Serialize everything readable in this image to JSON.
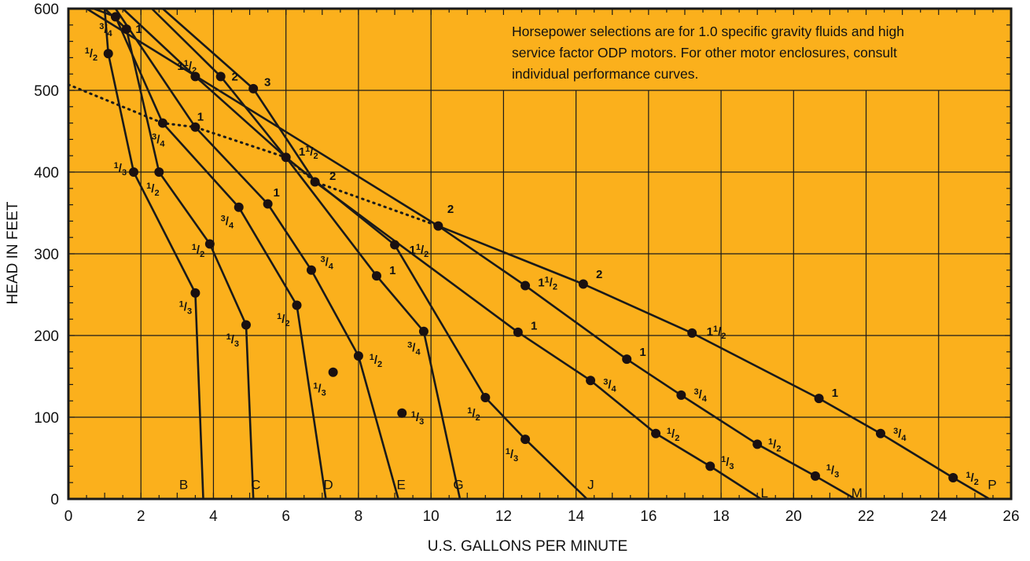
{
  "chart_data": {
    "type": "line",
    "xlabel": "U.S. GALLONS PER MINUTE",
    "ylabel": "HEAD IN FEET",
    "xlim": [
      0,
      26
    ],
    "ylim": [
      0,
      600
    ],
    "grid": true,
    "background_color": "#FBB01C",
    "line_color": "#1a1a1a",
    "x_ticks": [
      "0",
      "2",
      "4",
      "6",
      "8",
      "10",
      "12",
      "14",
      "16",
      "18",
      "20",
      "22",
      "24",
      "26"
    ],
    "y_ticks": [
      "0",
      "100",
      "200",
      "300",
      "400",
      "500",
      "600"
    ],
    "annotation": {
      "lines": [
        "Horsepower selections are for 1.0 specific gravity fluids and high",
        "service factor ODP motors. For other motor enclosures, consult",
        "individual performance curves."
      ]
    },
    "curves": [
      {
        "name": "B",
        "points": [
          [
            1.0,
            600
          ],
          [
            1.1,
            545
          ],
          [
            1.8,
            400
          ],
          [
            3.5,
            252
          ],
          [
            3.72,
            0
          ]
        ]
      },
      {
        "name": "C",
        "points": [
          [
            1.0,
            600
          ],
          [
            1.6,
            575
          ],
          [
            2.5,
            400
          ],
          [
            3.9,
            312
          ],
          [
            4.9,
            213
          ],
          [
            5.1,
            0
          ]
        ]
      },
      {
        "name": "D",
        "points": [
          [
            0.7,
            600
          ],
          [
            1.3,
            590
          ],
          [
            2.6,
            460
          ],
          [
            4.7,
            357
          ],
          [
            6.3,
            237
          ],
          [
            7.1,
            0
          ]
        ]
      },
      {
        "name": "E",
        "points": [
          [
            1.3,
            600
          ],
          [
            3.5,
            455
          ],
          [
            5.5,
            361
          ],
          [
            6.7,
            280
          ],
          [
            8.0,
            175
          ],
          [
            9.1,
            0
          ]
        ]
      },
      {
        "name": "G",
        "points": [
          [
            1.5,
            600
          ],
          [
            3.5,
            517
          ],
          [
            6.0,
            418
          ],
          [
            8.5,
            273
          ],
          [
            9.8,
            205
          ],
          [
            10.8,
            0
          ]
        ]
      },
      {
        "name": "J",
        "points": [
          [
            2.3,
            600
          ],
          [
            4.2,
            517
          ],
          [
            6.0,
            418
          ],
          [
            9.0,
            311
          ],
          [
            11.5,
            124
          ],
          [
            12.6,
            73
          ],
          [
            14.3,
            0
          ]
        ]
      },
      {
        "name": "L",
        "points": [
          [
            2.6,
            600
          ],
          [
            5.1,
            502
          ],
          [
            6.8,
            388
          ],
          [
            12.4,
            204
          ],
          [
            14.4,
            145
          ],
          [
            16.2,
            80
          ],
          [
            17.7,
            40
          ],
          [
            19.1,
            0
          ]
        ]
      },
      {
        "name": "M",
        "points": [
          [
            0.5,
            600
          ],
          [
            10.2,
            334
          ],
          [
            12.6,
            261
          ],
          [
            15.4,
            171
          ],
          [
            16.9,
            127
          ],
          [
            19.0,
            67
          ],
          [
            20.6,
            28
          ],
          [
            21.7,
            0
          ]
        ]
      },
      {
        "name": "P",
        "points": [
          [
            10.2,
            334
          ],
          [
            14.2,
            263
          ],
          [
            17.2,
            203
          ],
          [
            20.7,
            123
          ],
          [
            22.4,
            80
          ],
          [
            24.4,
            26
          ],
          [
            25.4,
            0
          ]
        ]
      }
    ],
    "curve_label_positions": [
      {
        "name": "B",
        "x": 3.3,
        "y": 12
      },
      {
        "name": "C",
        "x": 5.3,
        "y": 12
      },
      {
        "name": "D",
        "x": 7.3,
        "y": 12
      },
      {
        "name": "E",
        "x": 9.3,
        "y": 12
      },
      {
        "name": "G",
        "x": 10.9,
        "y": 12
      },
      {
        "name": "J",
        "x": 14.5,
        "y": 12
      },
      {
        "name": "L",
        "x": 19.3,
        "y": 2
      },
      {
        "name": "M",
        "x": 21.9,
        "y": 2
      },
      {
        "name": "P",
        "x": 25.6,
        "y": 12
      }
    ],
    "dotted_line": {
      "points": [
        [
          0,
          507
        ],
        [
          2.6,
          460
        ],
        [
          3.5,
          455
        ],
        [
          6.0,
          418
        ],
        [
          6.8,
          388
        ],
        [
          10.2,
          334
        ]
      ]
    },
    "hp_points": [
      {
        "x": 1.1,
        "y": 545,
        "label": "1/2",
        "lx": 0.45,
        "ly": 545
      },
      {
        "x": 1.3,
        "y": 590,
        "label": "3/4",
        "lx": 0.85,
        "ly": 575
      },
      {
        "x": 1.6,
        "y": 575,
        "label": "1",
        "lx": 1.85,
        "ly": 575
      },
      {
        "x": 1.8,
        "y": 400,
        "label": "1/3",
        "lx": 1.25,
        "ly": 405
      },
      {
        "x": 2.5,
        "y": 400,
        "label": "1/2",
        "lx": 2.15,
        "ly": 380
      },
      {
        "x": 2.6,
        "y": 460,
        "label": "3/4",
        "lx": 2.3,
        "ly": 440
      },
      {
        "x": 3.5,
        "y": 455,
        "label": "1",
        "lx": 3.55,
        "ly": 468
      },
      {
        "x": 3.5,
        "y": 517,
        "label": "1 1/2",
        "lx": 3.0,
        "ly": 530
      },
      {
        "x": 4.2,
        "y": 517,
        "label": "2",
        "lx": 4.5,
        "ly": 517
      },
      {
        "x": 5.1,
        "y": 502,
        "label": "3",
        "lx": 5.4,
        "ly": 510
      },
      {
        "x": 3.9,
        "y": 312,
        "label": "1/2",
        "lx": 3.4,
        "ly": 305
      },
      {
        "x": 3.5,
        "y": 252,
        "label": "1/3",
        "lx": 3.05,
        "ly": 235
      },
      {
        "x": 4.7,
        "y": 357,
        "label": "3/4",
        "lx": 4.2,
        "ly": 340
      },
      {
        "x": 5.5,
        "y": 361,
        "label": "1",
        "lx": 5.65,
        "ly": 375
      },
      {
        "x": 4.9,
        "y": 213,
        "label": "1/3",
        "lx": 4.35,
        "ly": 195
      },
      {
        "x": 6.0,
        "y": 418,
        "label": "1 1/2",
        "lx": 6.35,
        "ly": 425
      },
      {
        "x": 6.8,
        "y": 388,
        "label": "2",
        "lx": 7.2,
        "ly": 395
      },
      {
        "x": 6.3,
        "y": 237,
        "label": "1/2",
        "lx": 5.75,
        "ly": 220
      },
      {
        "x": 6.7,
        "y": 280,
        "label": "3/4",
        "lx": 6.95,
        "ly": 290
      },
      {
        "x": 7.3,
        "y": 155,
        "label": "1/3",
        "lx": 6.75,
        "ly": 135
      },
      {
        "x": 8.0,
        "y": 175,
        "label": "1/2",
        "lx": 8.3,
        "ly": 170
      },
      {
        "x": 8.5,
        "y": 273,
        "label": "1",
        "lx": 8.85,
        "ly": 280
      },
      {
        "x": 9.0,
        "y": 311,
        "label": "1 1/2",
        "lx": 9.4,
        "ly": 305
      },
      {
        "x": 9.8,
        "y": 205,
        "label": "3/4",
        "lx": 9.35,
        "ly": 185
      },
      {
        "x": 9.2,
        "y": 105,
        "label": "1/3",
        "lx": 9.45,
        "ly": 100
      },
      {
        "x": 10.2,
        "y": 334,
        "label": "2",
        "lx": 10.45,
        "ly": 355
      },
      {
        "x": 11.5,
        "y": 124,
        "label": "1/2",
        "lx": 11.0,
        "ly": 105
      },
      {
        "x": 12.6,
        "y": 73,
        "label": "1/3",
        "lx": 12.05,
        "ly": 55
      },
      {
        "x": 12.4,
        "y": 204,
        "label": "1",
        "lx": 12.75,
        "ly": 212
      },
      {
        "x": 12.6,
        "y": 261,
        "label": "1 1/2",
        "lx": 12.95,
        "ly": 265
      },
      {
        "x": 14.2,
        "y": 263,
        "label": "2",
        "lx": 14.55,
        "ly": 275
      },
      {
        "x": 14.4,
        "y": 145,
        "label": "3/4",
        "lx": 14.75,
        "ly": 140
      },
      {
        "x": 15.4,
        "y": 171,
        "label": "1",
        "lx": 15.75,
        "ly": 180
      },
      {
        "x": 16.2,
        "y": 80,
        "label": "1/2",
        "lx": 16.5,
        "ly": 80
      },
      {
        "x": 16.9,
        "y": 127,
        "label": "3/4",
        "lx": 17.25,
        "ly": 128
      },
      {
        "x": 17.2,
        "y": 203,
        "label": "1 1/2",
        "lx": 17.6,
        "ly": 205
      },
      {
        "x": 17.7,
        "y": 40,
        "label": "1/3",
        "lx": 18.0,
        "ly": 45
      },
      {
        "x": 19.0,
        "y": 67,
        "label": "1/2",
        "lx": 19.3,
        "ly": 67
      },
      {
        "x": 20.6,
        "y": 28,
        "label": "1/3",
        "lx": 20.9,
        "ly": 35
      },
      {
        "x": 20.7,
        "y": 123,
        "label": "1",
        "lx": 21.05,
        "ly": 130
      },
      {
        "x": 22.4,
        "y": 80,
        "label": "3/4",
        "lx": 22.75,
        "ly": 80
      },
      {
        "x": 24.4,
        "y": 26,
        "label": "1/2",
        "lx": 24.75,
        "ly": 26
      }
    ]
  }
}
